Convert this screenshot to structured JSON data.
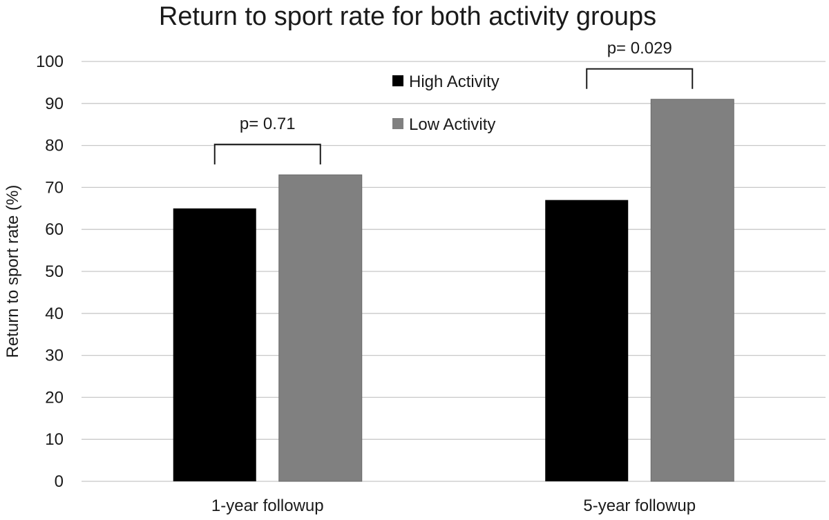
{
  "chart_data": {
    "type": "bar",
    "title": "Return to sport rate for both activity groups",
    "xlabel": "",
    "ylabel": "Return to sport rate (%)",
    "categories": [
      "1-year followup",
      "5-year followup"
    ],
    "series": [
      {
        "name": "High Activity",
        "values": [
          65,
          67
        ],
        "color": "#000000"
      },
      {
        "name": "Low Activity",
        "values": [
          73,
          91
        ],
        "color": "#808080"
      }
    ],
    "ylim": [
      0,
      100
    ],
    "yticks": [
      0,
      10,
      20,
      30,
      40,
      50,
      60,
      70,
      80,
      90,
      100
    ],
    "grid": true,
    "legend_position": "top-center",
    "annotations": [
      {
        "category": "1-year followup",
        "text": "p= 0.71"
      },
      {
        "category": "5-year followup",
        "text": "p= 0.029"
      }
    ]
  }
}
